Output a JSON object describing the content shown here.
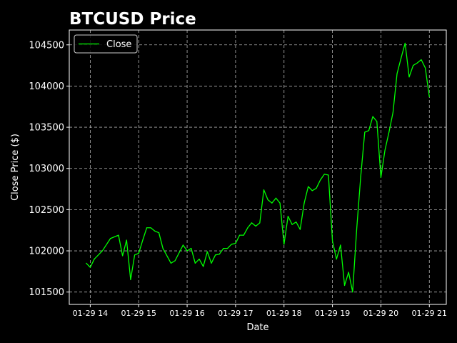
{
  "chart_data": {
    "type": "line",
    "title": "BTCUSD Price",
    "xlabel": "Date",
    "ylabel": "Close Price ($)",
    "x_tick_labels": [
      "01-29 14",
      "01-29 15",
      "01-29 16",
      "01-29 17",
      "01-29 18",
      "01-29 19",
      "01-29 20",
      "01-29 21"
    ],
    "y_tick_labels": [
      "101500",
      "102000",
      "102500",
      "103000",
      "103500",
      "104000",
      "104500"
    ],
    "y_ticks": [
      101500,
      102000,
      102500,
      103000,
      103500,
      104000,
      104500
    ],
    "xlim": [
      "01-29 13:34",
      "01-29 21:21"
    ],
    "ylim": [
      101350,
      104680
    ],
    "grid": true,
    "legend_position": "top-left",
    "series": [
      {
        "name": "Close",
        "color": "#00ff00",
        "x": [
          "01-29 13:55",
          "01-29 14:00",
          "01-29 14:05",
          "01-29 14:15",
          "01-29 14:25",
          "01-29 14:35",
          "01-29 14:40",
          "01-29 14:45",
          "01-29 14:50",
          "01-29 14:55",
          "01-29 15:00",
          "01-29 15:05",
          "01-29 15:10",
          "01-29 15:15",
          "01-29 15:20",
          "01-29 15:25",
          "01-29 15:30",
          "01-29 15:40",
          "01-29 15:45",
          "01-29 15:55",
          "01-29 16:00",
          "01-29 16:05",
          "01-29 16:10",
          "01-29 16:15",
          "01-29 16:20",
          "01-29 16:25",
          "01-29 16:30",
          "01-29 16:35",
          "01-29 16:40",
          "01-29 16:45",
          "01-29 16:50",
          "01-29 16:55",
          "01-29 17:00",
          "01-29 17:05",
          "01-29 17:10",
          "01-29 17:15",
          "01-29 17:20",
          "01-29 17:25",
          "01-29 17:30",
          "01-29 17:35",
          "01-29 17:40",
          "01-29 17:45",
          "01-29 17:50",
          "01-29 17:55",
          "01-29 18:00",
          "01-29 18:05",
          "01-29 18:10",
          "01-29 18:15",
          "01-29 18:20",
          "01-29 18:25",
          "01-29 18:30",
          "01-29 18:35",
          "01-29 18:40",
          "01-29 18:45",
          "01-29 18:50",
          "01-29 18:55",
          "01-29 19:00",
          "01-29 19:05",
          "01-29 19:10",
          "01-29 19:15",
          "01-29 19:20",
          "01-29 19:25",
          "01-29 19:30",
          "01-29 19:35",
          "01-29 19:40",
          "01-29 19:45",
          "01-29 19:50",
          "01-29 19:55",
          "01-29 20:00",
          "01-29 20:05",
          "01-29 20:10",
          "01-29 20:15",
          "01-29 20:20",
          "01-29 20:25",
          "01-29 20:30",
          "01-29 20:35",
          "01-29 20:40",
          "01-29 20:45",
          "01-29 20:50",
          "01-29 20:55",
          "01-29 21:00"
        ],
        "values": [
          101850,
          101800,
          101900,
          102000,
          102150,
          102190,
          101940,
          102130,
          101650,
          101950,
          101970,
          102130,
          102280,
          102280,
          102240,
          102220,
          102030,
          101850,
          101880,
          102070,
          102000,
          102030,
          101850,
          101900,
          101810,
          101990,
          101850,
          101950,
          101960,
          102030,
          102030,
          102080,
          102090,
          102190,
          102190,
          102280,
          102340,
          102300,
          102340,
          102740,
          102620,
          102580,
          102640,
          102580,
          102080,
          102420,
          102320,
          102350,
          102260,
          102580,
          102780,
          102730,
          102760,
          102860,
          102930,
          102920,
          102120,
          101900,
          102070,
          101580,
          101740,
          101500,
          102260,
          102900,
          103440,
          103460,
          103630,
          103570,
          102890,
          103220,
          103440,
          103680,
          104150,
          104340,
          104520,
          104110,
          104250,
          104280,
          104320,
          104220,
          103870
        ]
      }
    ]
  }
}
